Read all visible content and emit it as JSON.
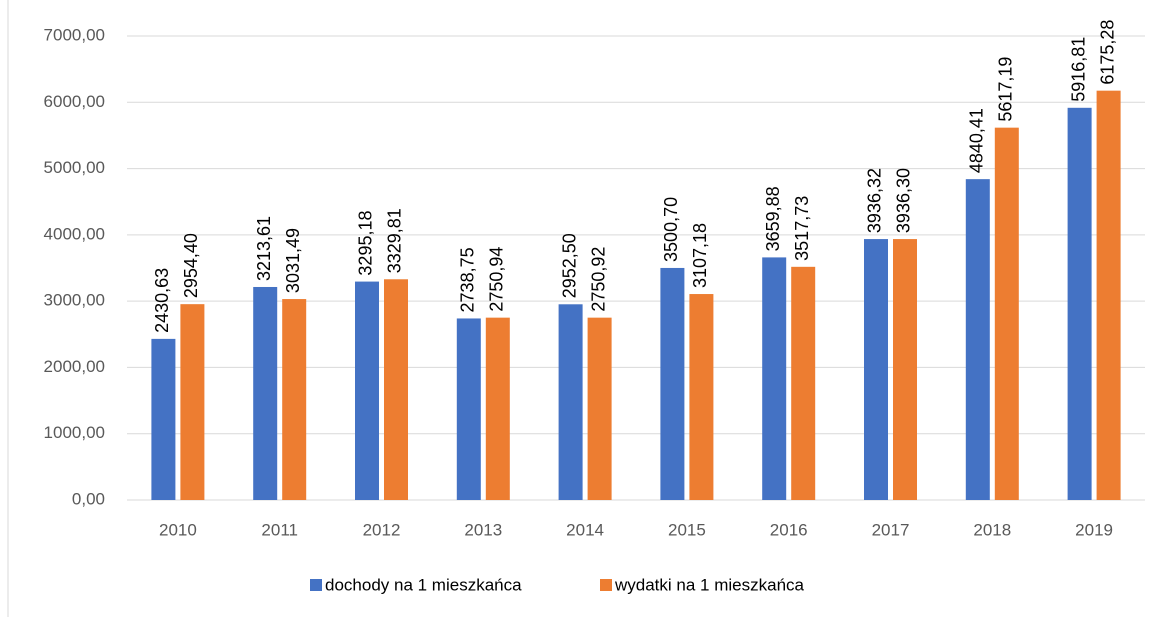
{
  "chart_data": {
    "type": "bar",
    "categories": [
      "2010",
      "2011",
      "2012",
      "2013",
      "2014",
      "2015",
      "2016",
      "2017",
      "2018",
      "2019"
    ],
    "series": [
      {
        "name": "dochody na 1 mieszkańca",
        "color": "#4472c4",
        "values": [
          2430.63,
          3213.61,
          3295.18,
          2738.75,
          2952.5,
          3500.7,
          3659.88,
          3936.32,
          4840.41,
          5916.81
        ],
        "value_labels": [
          "2430,63",
          "3213,61",
          "3295,18",
          "2738,75",
          "2952,50",
          "3500,70",
          "3659,88",
          "3936,32",
          "4840,41",
          "5916,81"
        ]
      },
      {
        "name": "wydatki na 1 mieszkańca",
        "color": "#ed7d31",
        "values": [
          2954.4,
          3031.49,
          3329.81,
          2750.94,
          2750.92,
          3107.18,
          3517.73,
          3936.3,
          5617.19,
          6175.28
        ],
        "value_labels": [
          "2954,40",
          "3031,49",
          "3329,81",
          "2750,94",
          "2750,92",
          "3107,18",
          "3517,73",
          "3936,30",
          "5617,19",
          "6175,28"
        ]
      }
    ],
    "ylim": [
      0,
      7000
    ],
    "yticks": [
      {
        "value": 0,
        "label": "0,00"
      },
      {
        "value": 1000,
        "label": "1000,00"
      },
      {
        "value": 2000,
        "label": "2000,00"
      },
      {
        "value": 3000,
        "label": "3000,00"
      },
      {
        "value": 4000,
        "label": "4000,00"
      },
      {
        "value": 5000,
        "label": "5000,00"
      },
      {
        "value": 6000,
        "label": "6000,00"
      },
      {
        "value": 7000,
        "label": "7000,00"
      }
    ],
    "grid": true,
    "legend": "bottom"
  }
}
